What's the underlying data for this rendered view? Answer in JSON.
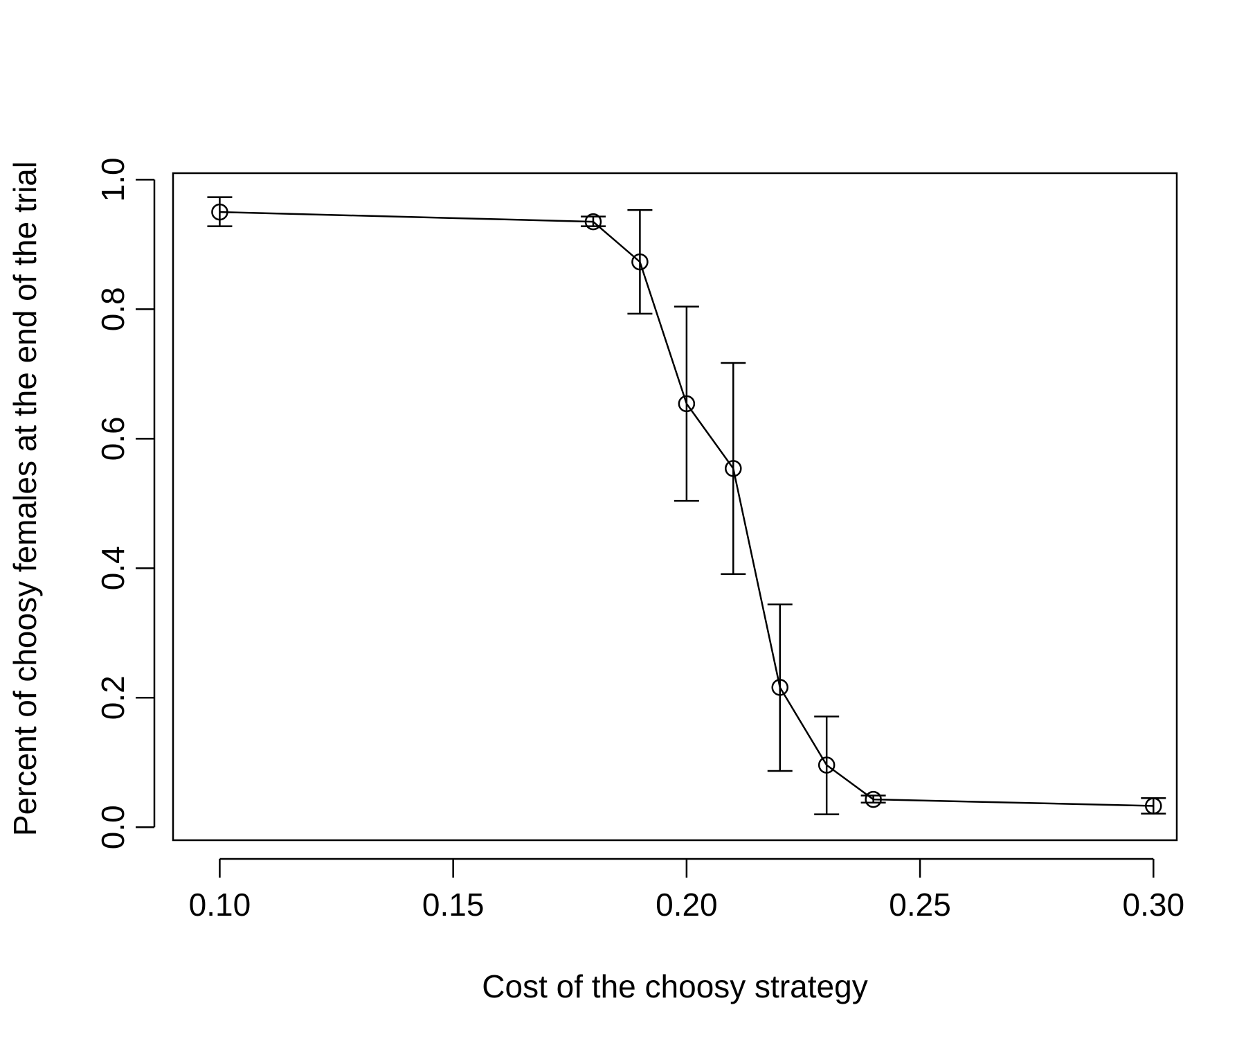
{
  "chart_data": {
    "type": "line",
    "title": "",
    "xlabel": "Cost of the choosy strategy",
    "ylabel": "Percent of choosy females at the end of the trial",
    "xlim": [
      0.09,
      0.305
    ],
    "ylim": [
      -0.02,
      1.01
    ],
    "x_ticks": [
      0.1,
      0.15,
      0.2,
      0.25,
      0.3
    ],
    "x_tick_labels": [
      "0.10",
      "0.15",
      "0.20",
      "0.25",
      "0.30"
    ],
    "y_ticks": [
      0.0,
      0.2,
      0.4,
      0.6,
      0.8,
      1.0
    ],
    "y_tick_labels": [
      "0.0",
      "0.2",
      "0.4",
      "0.6",
      "0.8",
      "1.0"
    ],
    "grid": false,
    "series": [
      {
        "x": [
          0.1,
          0.18,
          0.19,
          0.2,
          0.21,
          0.22,
          0.23,
          0.24,
          0.3
        ],
        "y": [
          0.95,
          0.935,
          0.873,
          0.654,
          0.554,
          0.216,
          0.096,
          0.043,
          0.033
        ],
        "err_low": [
          0.928,
          0.928,
          0.793,
          0.504,
          0.391,
          0.087,
          0.02,
          0.038,
          0.021
        ],
        "err_high": [
          0.973,
          0.943,
          0.953,
          0.804,
          0.717,
          0.344,
          0.171,
          0.049,
          0.045
        ],
        "marker": "open-circle",
        "color": "#000000"
      }
    ]
  }
}
